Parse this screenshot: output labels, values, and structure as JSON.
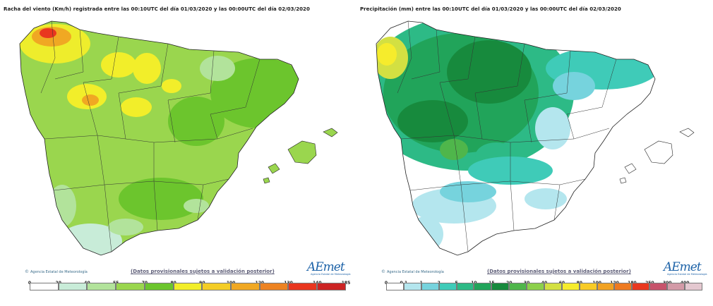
{
  "panels": [
    {
      "id": "wind",
      "title": "Racha del viento (Km/h) registrada entre las 00:10UTC del día 01/03/2020 y las 00:00UTC del día 02/03/2020",
      "agency": "Agencia Estatal de Meteorología",
      "disclaimer": "(Datos provisionales sujetos a validación posterior)",
      "logo": "AEmet",
      "logo_sub": "Agencia Estatal de Meteorología",
      "legend": {
        "ticks": [
          "0",
          "20",
          "40",
          "55",
          "70",
          "80",
          "90",
          "100",
          "120",
          "130",
          "140",
          "185"
        ],
        "colors": [
          "#ffffff",
          "#c8ecd8",
          "#b2e39b",
          "#9ad64e",
          "#6cc52d",
          "#f2ee2a",
          "#f4cd26",
          "#f0a823",
          "#ed8322",
          "#e9361f",
          "#cc2424"
        ]
      }
    },
    {
      "id": "precip",
      "title": "Precipitación (mm) entre las 00:10UTC del día 01/03/2020 y las 00:00UTC del día 02/03/2020",
      "agency": "Agencia Estatal de Meteorología",
      "disclaimer": "(Datos provisionales sujetos a validación posterior)",
      "logo": "AEmet",
      "logo_sub": "Agencia Estatal de Meteorología",
      "legend": {
        "ticks": [
          "0",
          "0.1",
          "1",
          "2",
          "5",
          "10",
          "15",
          "20",
          "30",
          "40",
          "60",
          "80",
          "100",
          "120",
          "180",
          "250",
          "300",
          "400"
        ],
        "colors": [
          "#ffffff",
          "#b4e6ee",
          "#76d3dd",
          "#3fcbb8",
          "#2dba86",
          "#21a45a",
          "#178a3d",
          "#4fb64b",
          "#8cd04b",
          "#d3e042",
          "#f6ec2c",
          "#f8cb26",
          "#f1a223",
          "#ee7a21",
          "#e9381f",
          "#c7536b",
          "#d39aa7",
          "#e4c8d0"
        ]
      }
    }
  ]
}
